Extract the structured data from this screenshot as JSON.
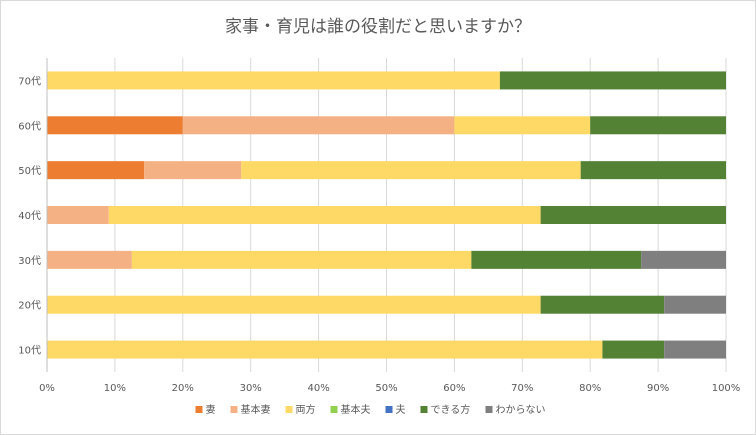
{
  "chart_data": {
    "type": "bar",
    "orientation": "horizontal",
    "stacked": "percent",
    "title": "家事・育児は誰の役割だと思いますか？",
    "categories": [
      "70代",
      "60代",
      "50代",
      "40代",
      "30代",
      "20代",
      "10代"
    ],
    "x_ticks": [
      "0%",
      "10%",
      "20%",
      "30%",
      "40%",
      "50%",
      "60%",
      "70%",
      "80%",
      "90%",
      "100%"
    ],
    "xlim": [
      0,
      100
    ],
    "grid": "vertical",
    "legend_position": "bottom",
    "series": [
      {
        "name": "妻",
        "color": "#ed7d31",
        "values": [
          0,
          20,
          14.3,
          0,
          0,
          0,
          0
        ]
      },
      {
        "name": "基本妻",
        "color": "#f4b183",
        "values": [
          0,
          40,
          14.3,
          9.1,
          12.5,
          0,
          0
        ]
      },
      {
        "name": "両方",
        "color": "#ffd966",
        "values": [
          66.7,
          20,
          50,
          63.6,
          50,
          72.7,
          81.8
        ]
      },
      {
        "name": "基本夫",
        "color": "#92d050",
        "values": [
          0,
          0,
          0,
          0,
          0,
          0,
          0
        ]
      },
      {
        "name": "夫",
        "color": "#4472c4",
        "values": [
          0,
          0,
          0,
          0,
          0,
          0,
          0
        ]
      },
      {
        "name": "できる方",
        "color": "#548235",
        "values": [
          33.3,
          20,
          21.4,
          27.3,
          25,
          18.2,
          9.1
        ]
      },
      {
        "name": "わからない",
        "color": "#7f7f7f",
        "values": [
          0,
          0,
          0,
          0,
          12.5,
          9.1,
          9.1
        ]
      }
    ]
  }
}
